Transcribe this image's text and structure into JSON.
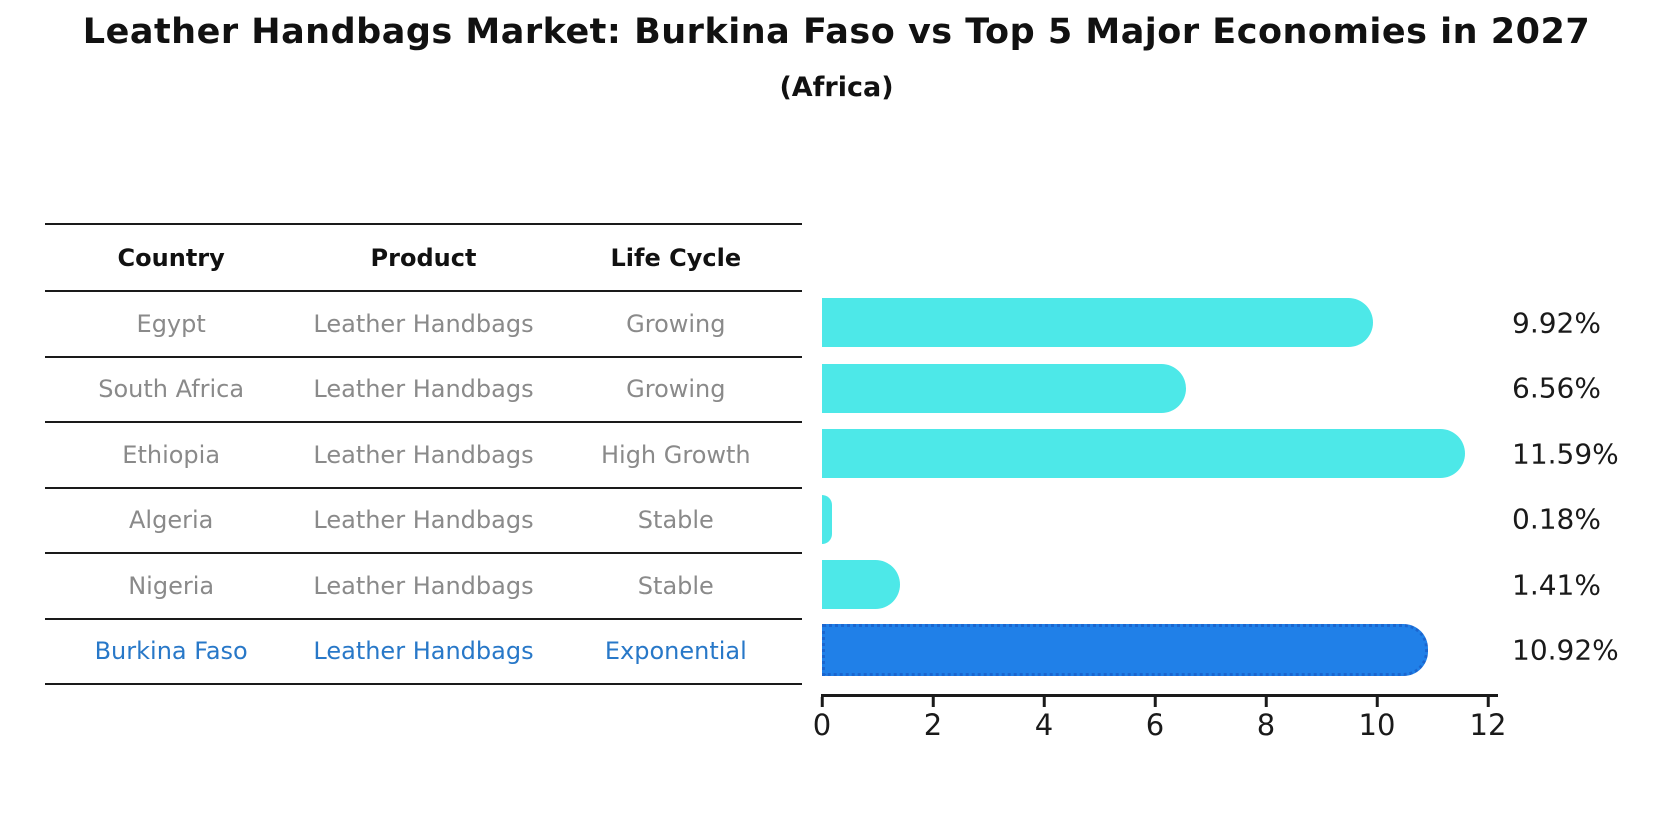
{
  "title": "Leather Handbags Market: Burkina Faso vs Top 5 Major Economies in 2027",
  "subtitle": "(Africa)",
  "table": {
    "headers": [
      "Country",
      "Product",
      "Life Cycle"
    ],
    "rows": [
      {
        "country": "Egypt",
        "product": "Leather Handbags",
        "life_cycle": "Growing",
        "highlight": false
      },
      {
        "country": "South Africa",
        "product": "Leather Handbags",
        "life_cycle": "Growing",
        "highlight": false
      },
      {
        "country": "Ethiopia",
        "product": "Leather Handbags",
        "life_cycle": "High Growth",
        "highlight": false
      },
      {
        "country": "Algeria",
        "product": "Leather Handbags",
        "life_cycle": "Stable",
        "highlight": false
      },
      {
        "country": "Nigeria",
        "product": "Leather Handbags",
        "life_cycle": "Stable",
        "highlight": false
      },
      {
        "country": "Burkina Faso",
        "product": "Leather Handbags",
        "life_cycle": "Exponential",
        "highlight": true
      }
    ]
  },
  "chart_data": {
    "type": "bar",
    "orientation": "horizontal",
    "title": "Leather Handbags Market: Burkina Faso vs Top 5 Major Economies in 2027 (Africa)",
    "categories": [
      "Egypt",
      "South Africa",
      "Ethiopia",
      "Algeria",
      "Nigeria",
      "Burkina Faso"
    ],
    "values": [
      9.92,
      6.56,
      11.59,
      0.18,
      1.41,
      10.92
    ],
    "value_labels": [
      "9.92%",
      "6.56%",
      "11.59%",
      "0.18%",
      "1.41%",
      "10.92%"
    ],
    "xlabel": "",
    "ylabel": "",
    "xlim": [
      0,
      12
    ],
    "x_ticks": [
      0,
      2,
      4,
      6,
      8,
      10,
      12
    ],
    "grid": false,
    "legend": "none",
    "highlight_index": 5
  },
  "colors": {
    "bar_default": "#4de8e8",
    "bar_highlight": "#2080e8",
    "bar_highlight_edge": "#1b66cf",
    "highlight_text": "#2878c8",
    "table_text": "#8a8a8a",
    "axis_text": "#1a1a1a"
  }
}
